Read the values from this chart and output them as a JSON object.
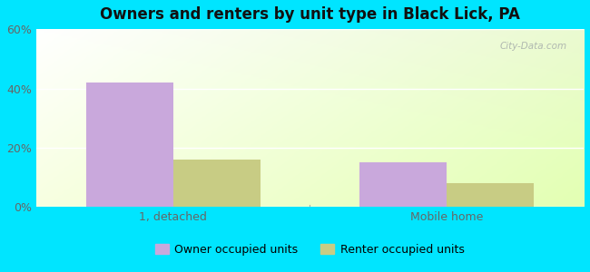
{
  "title": "Owners and renters by unit type in Black Lick, PA",
  "categories": [
    "1, detached",
    "Mobile home"
  ],
  "owner_values": [
    42,
    15
  ],
  "renter_values": [
    16,
    8
  ],
  "owner_color": "#c9a8dc",
  "renter_color": "#c8cc84",
  "owner_label": "Owner occupied units",
  "renter_label": "Renter occupied units",
  "ylim": [
    0,
    60
  ],
  "yticks": [
    0,
    20,
    40,
    60
  ],
  "ytick_labels": [
    "0%",
    "20%",
    "40%",
    "60%"
  ],
  "background_outer": "#00e5ff",
  "watermark": "City-Data.com",
  "bar_width": 0.35
}
